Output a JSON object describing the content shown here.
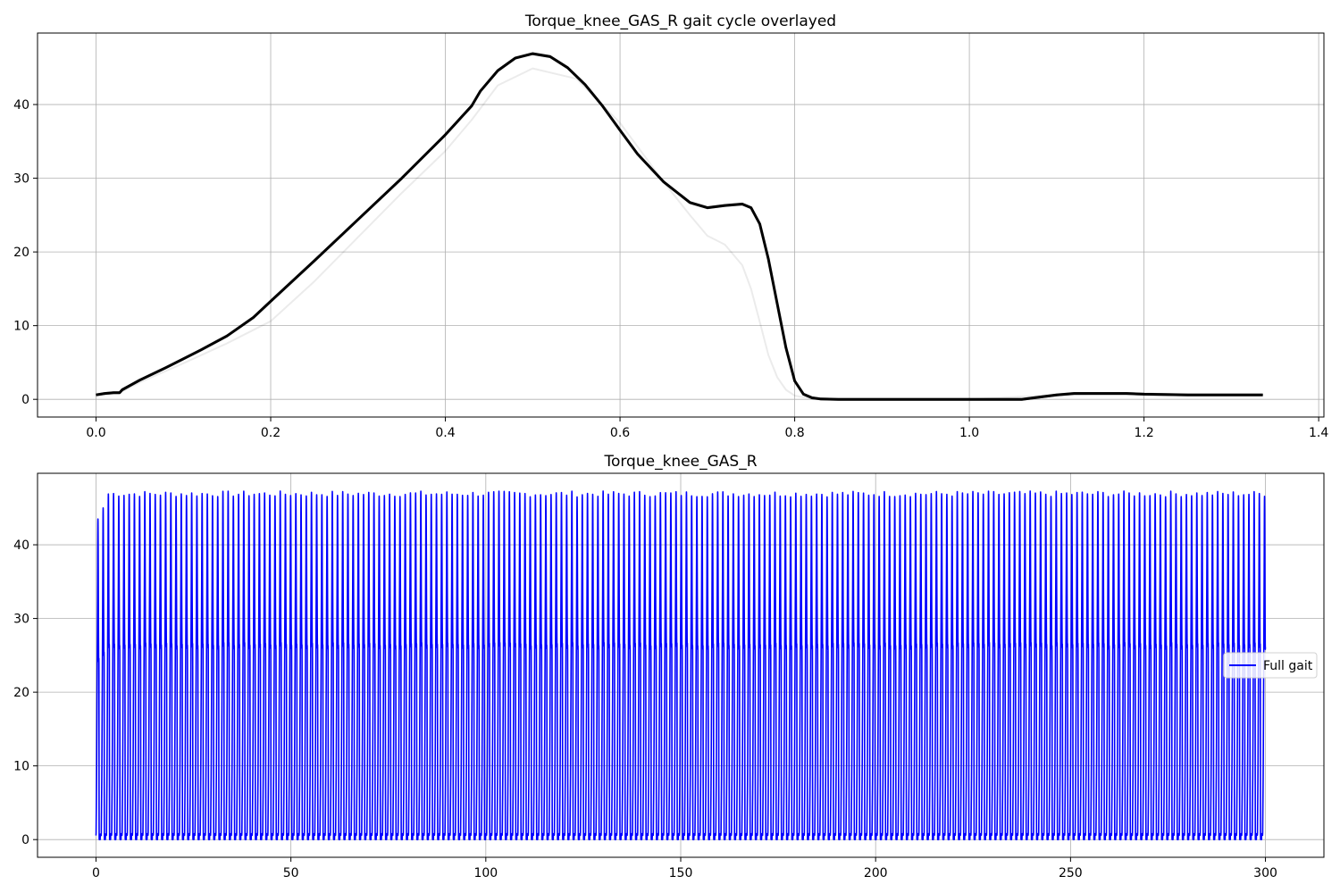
{
  "chart_data": [
    {
      "type": "line",
      "title": "Torque_knee_GAS_R gait cycle overlayed",
      "xlabel": "",
      "ylabel": "",
      "xlim": [
        -0.067,
        1.406
      ],
      "ylim": [
        -2.4,
        49.7
      ],
      "xticks": [
        0.0,
        0.2,
        0.4,
        0.6,
        0.8,
        1.0,
        1.2,
        1.4
      ],
      "xtick_labels": [
        "0.0",
        "0.2",
        "0.4",
        "0.6",
        "0.8",
        "1.0",
        "1.2",
        "1.4"
      ],
      "yticks": [
        0,
        10,
        20,
        30,
        40
      ],
      "ytick_labels": [
        "0",
        "10",
        "20",
        "30",
        "40"
      ],
      "grid": true,
      "line_color": "#000000",
      "series": [
        {
          "x": [
            0.0,
            0.01,
            0.02,
            0.027,
            0.03,
            0.05,
            0.08,
            0.1,
            0.12,
            0.15,
            0.18,
            0.2,
            0.25,
            0.3,
            0.35,
            0.4,
            0.42,
            0.43,
            0.44,
            0.46,
            0.48,
            0.5,
            0.52,
            0.54,
            0.56,
            0.58,
            0.6,
            0.62,
            0.65,
            0.68,
            0.7,
            0.72,
            0.74,
            0.75,
            0.76,
            0.77,
            0.78,
            0.79,
            0.8,
            0.81,
            0.82,
            0.83,
            0.85,
            0.9,
            1.0,
            1.06,
            1.08,
            1.1,
            1.12,
            1.15,
            1.18,
            1.2,
            1.25,
            1.3,
            1.336
          ],
          "values": [
            0.6,
            0.8,
            0.9,
            0.9,
            1.3,
            2.6,
            4.3,
            5.5,
            6.7,
            8.6,
            11.1,
            13.3,
            18.8,
            24.4,
            30.0,
            35.9,
            38.5,
            39.8,
            41.8,
            44.6,
            46.3,
            46.9,
            46.5,
            45.0,
            42.7,
            39.8,
            36.5,
            33.3,
            29.5,
            26.7,
            26.0,
            26.3,
            26.5,
            26.0,
            23.8,
            19.0,
            13.0,
            7.0,
            2.5,
            0.7,
            0.2,
            0.05,
            0.0,
            0.0,
            0.0,
            0.0,
            0.3,
            0.6,
            0.8,
            0.8,
            0.8,
            0.7,
            0.6,
            0.6,
            0.6
          ]
        },
        {
          "x": [
            0.0,
            0.027,
            0.05,
            0.1,
            0.15,
            0.2,
            0.25,
            0.3,
            0.35,
            0.4,
            0.43,
            0.46,
            0.5,
            0.55,
            0.6,
            0.65,
            0.68,
            0.7,
            0.72,
            0.74,
            0.75,
            0.76,
            0.77,
            0.78,
            0.79,
            0.8,
            0.82,
            0.85,
            0.9,
            1.0,
            1.1,
            1.15,
            1.2,
            1.3,
            1.336
          ],
          "values": [
            0.6,
            0.9,
            2.3,
            4.9,
            7.6,
            10.6,
            16.0,
            22.0,
            28.0,
            33.7,
            37.9,
            42.6,
            44.9,
            43.5,
            37.5,
            29.5,
            25.0,
            22.2,
            21.0,
            18.2,
            15.0,
            10.5,
            6.0,
            3.0,
            1.3,
            0.5,
            0.1,
            0.0,
            0.0,
            0.0,
            0.6,
            0.8,
            0.7,
            0.6,
            0.6
          ]
        }
      ]
    },
    {
      "type": "line",
      "title": "Torque_knee_GAS_R",
      "xlabel": "",
      "ylabel": "",
      "xlim": [
        -15,
        315
      ],
      "ylim": [
        -2.4,
        49.7
      ],
      "xticks": [
        0,
        50,
        100,
        150,
        200,
        250,
        300
      ],
      "xtick_labels": [
        "0",
        "50",
        "100",
        "150",
        "200",
        "250",
        "300"
      ],
      "yticks": [
        0,
        10,
        20,
        30,
        40
      ],
      "ytick_labels": [
        "0",
        "10",
        "20",
        "30",
        "40"
      ],
      "grid": true,
      "line_color": "#0000ff",
      "legend": {
        "placement": "right",
        "entries": [
          "Full gait"
        ]
      },
      "series": [
        {
          "name": "Full gait",
          "cycle_period": 1.336,
          "x_range": [
            0,
            300
          ],
          "first_peaks": [
            43.5,
            45.0
          ],
          "peak_range": [
            46.5,
            47.3
          ],
          "second_peak": 26.8,
          "min": 0.0
        }
      ]
    }
  ]
}
